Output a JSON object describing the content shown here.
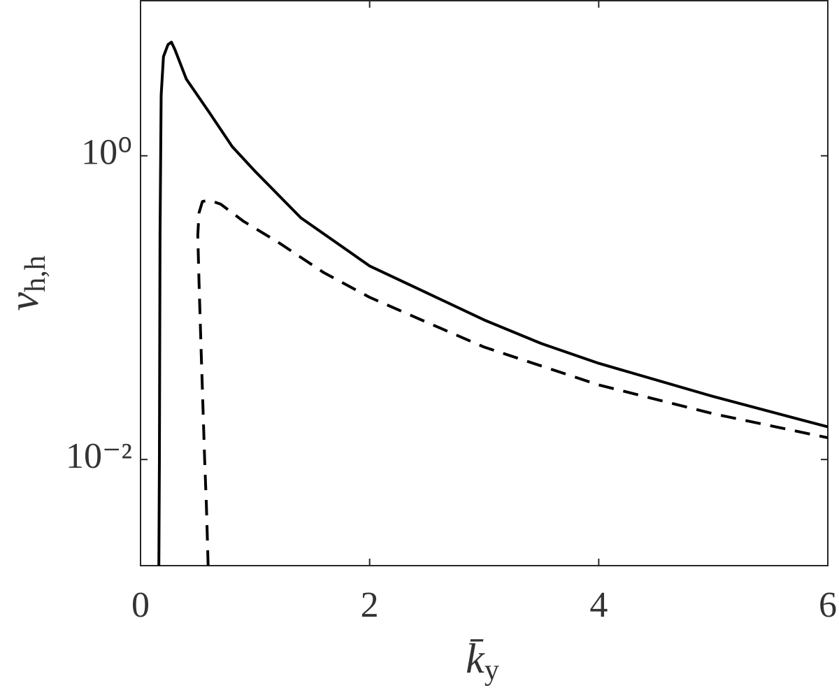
{
  "chart_data": {
    "type": "line",
    "xlabel": {
      "symbol": "k̄",
      "subscript": "y"
    },
    "ylabel": {
      "symbol": "ν",
      "subscript": "h,h"
    },
    "xlim": [
      0,
      6
    ],
    "xticks": [
      0,
      2,
      4,
      6
    ],
    "ylim": [
      0.002,
      10.5
    ],
    "yscale": "log",
    "yticks": [
      {
        "value": 0.01,
        "label": "10⁻²"
      },
      {
        "value": 1,
        "label": "10⁰"
      }
    ],
    "series": [
      {
        "color": "#000000",
        "dash": "solid",
        "x": [
          0.16,
          0.165,
          0.17,
          0.18,
          0.2,
          0.24,
          0.27,
          0.3,
          0.4,
          0.6,
          0.8,
          1.0,
          1.4,
          2,
          2.5,
          3,
          3.5,
          4,
          5,
          6
        ],
        "values": [
          0.002,
          0.01,
          0.3,
          2.5,
          4.5,
          5.4,
          5.6,
          5.0,
          3.2,
          1.93,
          1.15,
          0.79,
          0.39,
          0.188,
          0.125,
          0.083,
          0.058,
          0.043,
          0.026,
          0.0164
        ]
      },
      {
        "color": "#000000",
        "dash": "dashed",
        "x": [
          0.59,
          0.575,
          0.56,
          0.53,
          0.51,
          0.5,
          0.51,
          0.54,
          0.6,
          0.7,
          0.9,
          1.2,
          1.6,
          2,
          2.5,
          3,
          4,
          5,
          6
        ],
        "values": [
          0.002,
          0.005,
          0.01,
          0.05,
          0.15,
          0.3,
          0.42,
          0.5,
          0.51,
          0.48,
          0.37,
          0.27,
          0.17,
          0.117,
          0.08,
          0.055,
          0.031,
          0.02,
          0.0139
        ]
      }
    ]
  }
}
